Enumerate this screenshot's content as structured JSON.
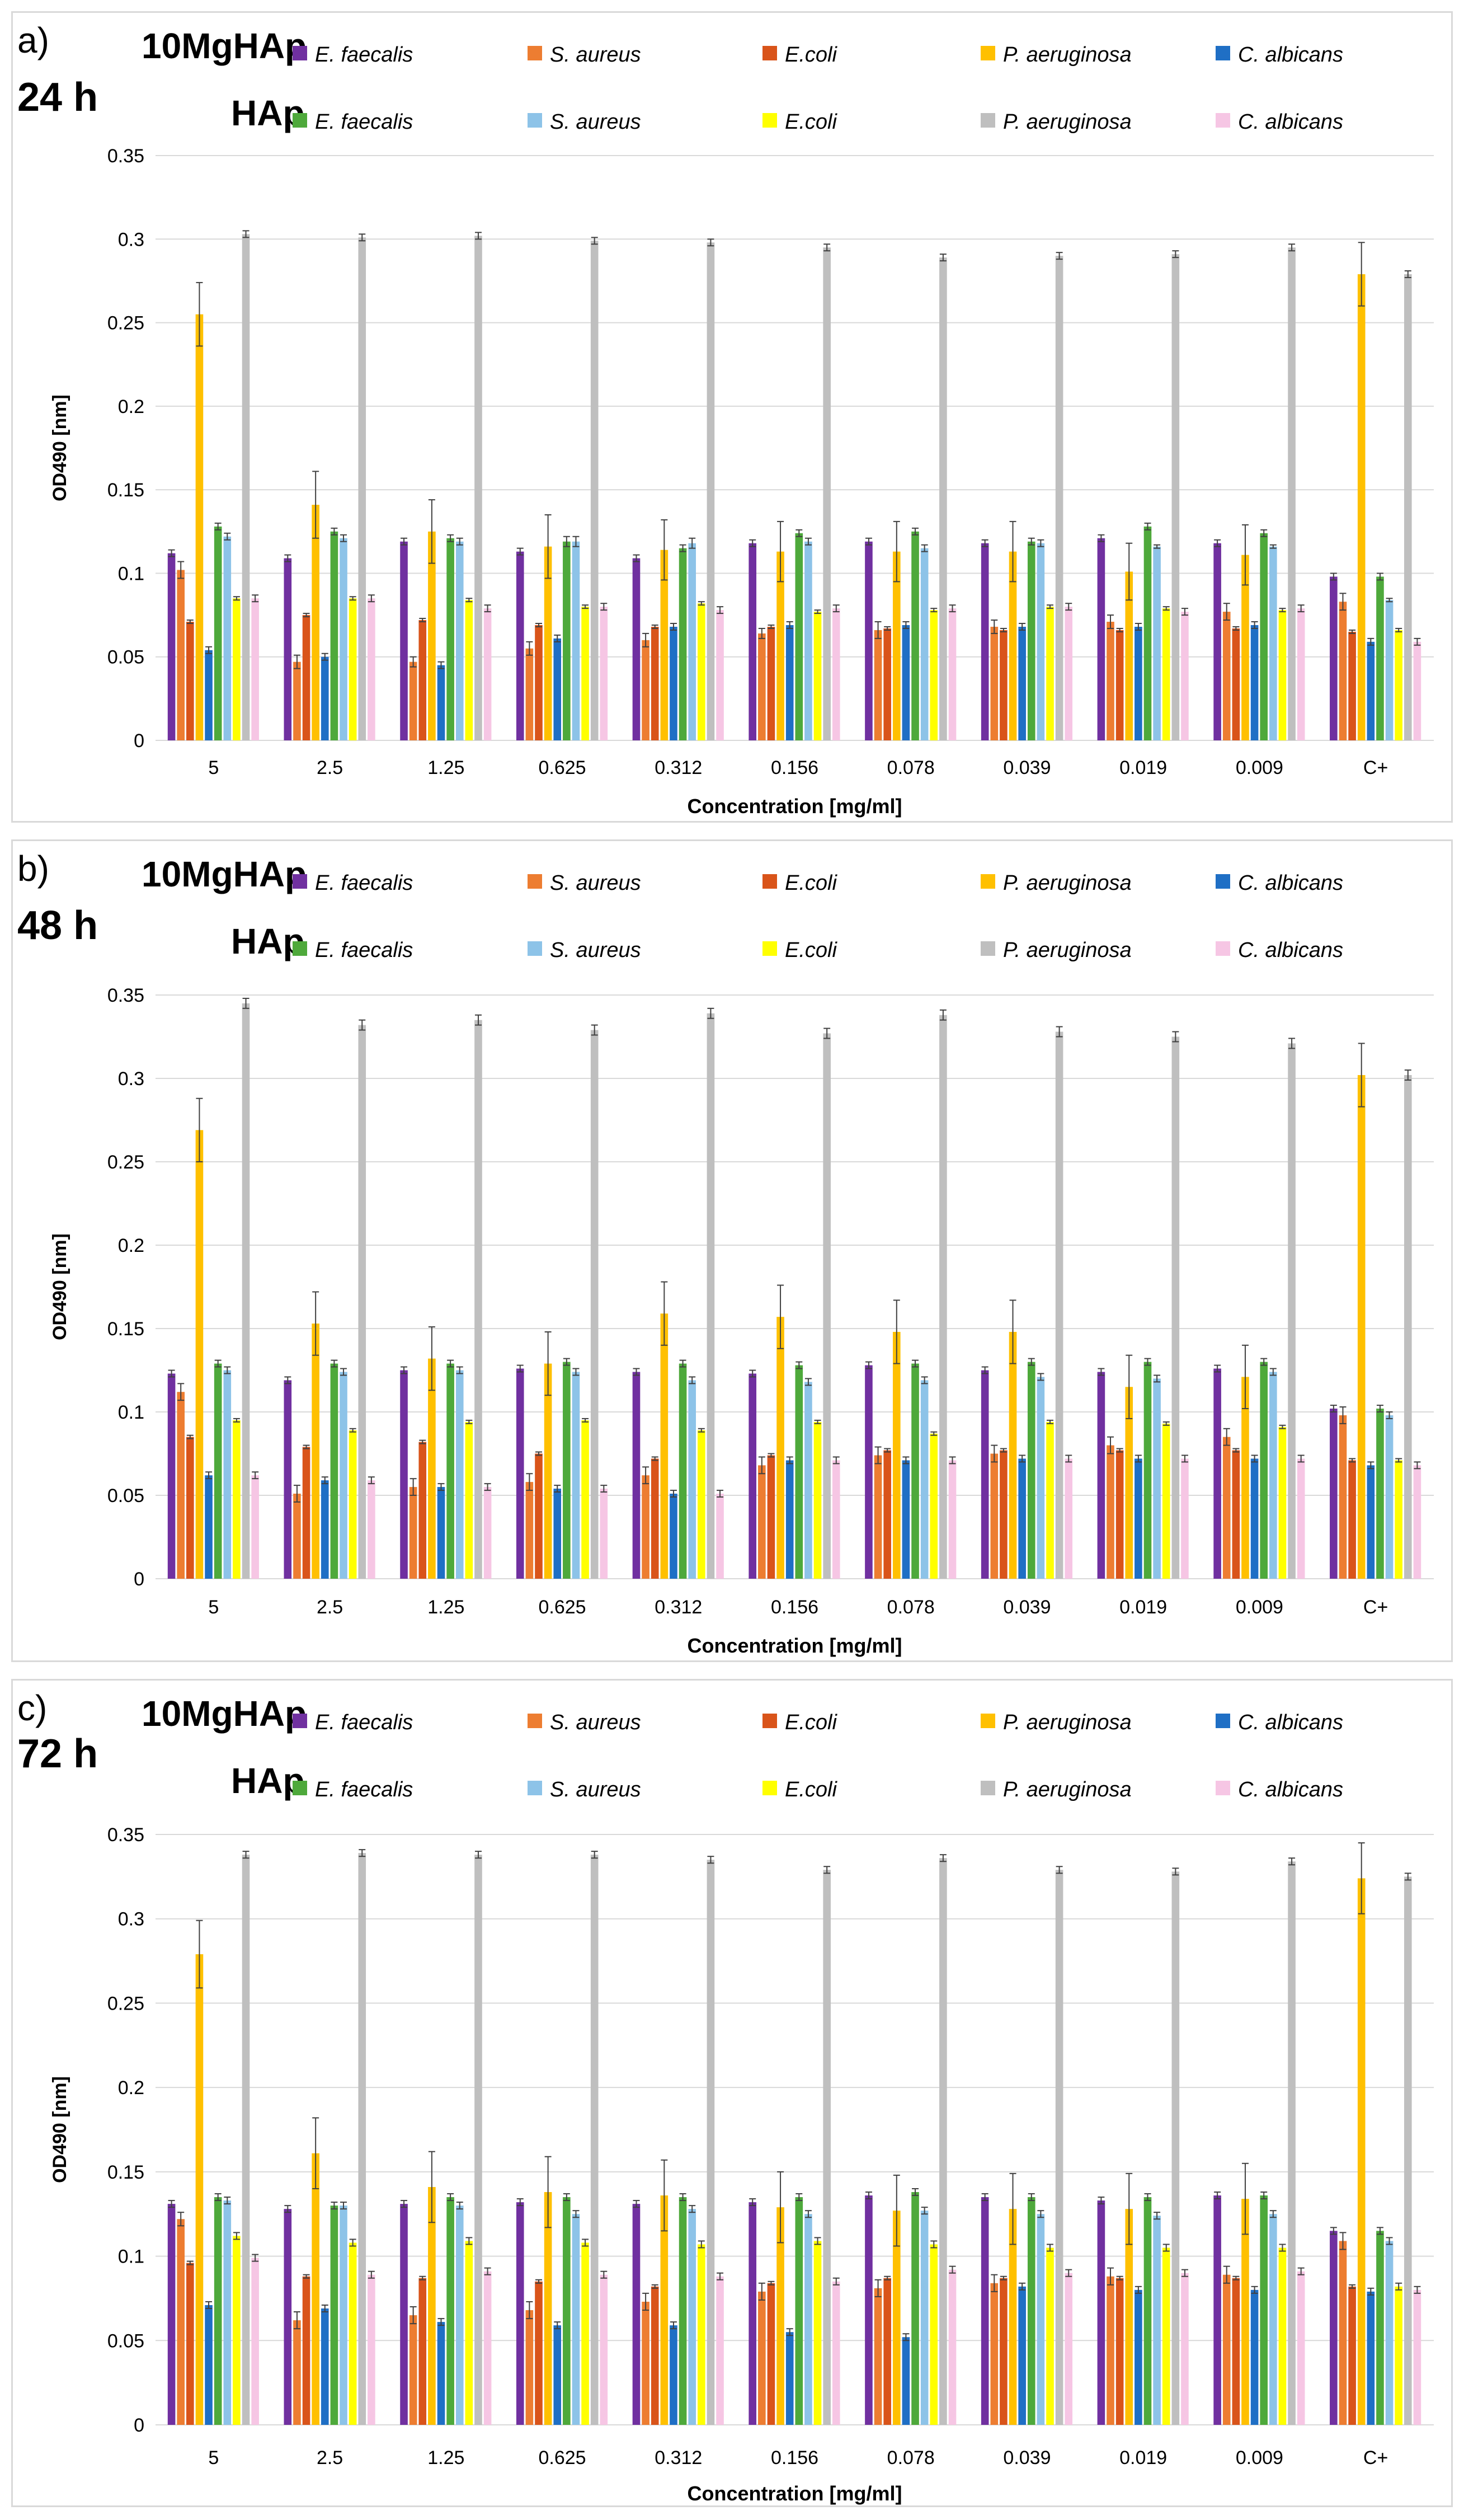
{
  "colors": {
    "mg_e_faecalis": "#7030A0",
    "mg_s_aureus": "#ED7D31",
    "mg_e_coli": "#D9541A",
    "mg_p_aeruginosa": "#FFC000",
    "mg_c_albicans": "#1F6FC5",
    "hap_e_faecalis": "#4EA93B",
    "hap_s_aureus": "#8DC3E8",
    "hap_e_coli": "#FFFF00",
    "hap_p_aeruginosa": "#BFBFBF",
    "hap_c_albicans": "#F6C6E4",
    "gridline": "#d9d9d9",
    "errorbar": "#404040"
  },
  "legend": {
    "mg_label": "10MgHAp",
    "hap_label": "HAp",
    "species": [
      "E. faecalis",
      "S. aureus",
      "E.coli",
      "P. aeruginosa",
      "C. albicans"
    ]
  },
  "chart_data": [
    {
      "type": "bar",
      "panel": "a)",
      "time": "24 h",
      "xlabel": "Concentration [mg/ml]",
      "ylabel": "OD490 [nm]",
      "ylim": [
        0,
        0.35
      ],
      "yticks": [
        "0",
        "0.05",
        "0.1",
        "0.15",
        "0.2",
        "0.25",
        "0.3",
        "0.35"
      ],
      "grid": true,
      "legend_position": "top",
      "categories": [
        "5",
        "2.5",
        "1.25",
        "0.625",
        "0.312",
        "0.156",
        "0.078",
        "0.039",
        "0.019",
        "0.009",
        "C+"
      ],
      "series": [
        {
          "group": "10MgHAp",
          "name": "E. faecalis",
          "values": [
            0.112,
            0.109,
            0.119,
            0.113,
            0.109,
            0.118,
            0.119,
            0.118,
            0.121,
            0.118,
            0.098
          ],
          "errors": [
            0.002,
            0.002,
            0.002,
            0.002,
            0.002,
            0.002,
            0.002,
            0.002,
            0.002,
            0.002,
            0.002
          ]
        },
        {
          "group": "10MgHAp",
          "name": "S. aureus",
          "values": [
            0.102,
            0.047,
            0.047,
            0.055,
            0.06,
            0.064,
            0.066,
            0.068,
            0.071,
            0.077,
            0.083
          ],
          "errors": [
            0.005,
            0.004,
            0.003,
            0.004,
            0.004,
            0.003,
            0.005,
            0.004,
            0.004,
            0.005,
            0.005
          ]
        },
        {
          "group": "10MgHAp",
          "name": "E.coli",
          "values": [
            0.071,
            0.075,
            0.072,
            0.069,
            0.068,
            0.068,
            0.067,
            0.066,
            0.066,
            0.067,
            0.065
          ],
          "errors": [
            0.001,
            0.001,
            0.001,
            0.001,
            0.001,
            0.001,
            0.001,
            0.001,
            0.001,
            0.001,
            0.001
          ]
        },
        {
          "group": "10MgHAp",
          "name": "P. aeruginosa",
          "values": [
            0.255,
            0.141,
            0.125,
            0.116,
            0.114,
            0.113,
            0.113,
            0.113,
            0.101,
            0.111,
            0.279
          ],
          "errors": [
            0.019,
            0.02,
            0.019,
            0.019,
            0.018,
            0.018,
            0.018,
            0.018,
            0.017,
            0.018,
            0.019
          ]
        },
        {
          "group": "10MgHAp",
          "name": "C. albicans",
          "values": [
            0.054,
            0.05,
            0.045,
            0.061,
            0.068,
            0.069,
            0.069,
            0.068,
            0.068,
            0.069,
            0.059
          ],
          "errors": [
            0.002,
            0.002,
            0.002,
            0.002,
            0.002,
            0.002,
            0.002,
            0.002,
            0.002,
            0.002,
            0.002
          ]
        },
        {
          "group": "HAp",
          "name": "E. faecalis",
          "values": [
            0.128,
            0.125,
            0.121,
            0.119,
            0.115,
            0.124,
            0.125,
            0.119,
            0.128,
            0.124,
            0.098
          ],
          "errors": [
            0.002,
            0.002,
            0.002,
            0.003,
            0.002,
            0.002,
            0.002,
            0.002,
            0.002,
            0.002,
            0.002
          ]
        },
        {
          "group": "HAp",
          "name": "S. aureus",
          "values": [
            0.122,
            0.121,
            0.119,
            0.119,
            0.118,
            0.119,
            0.115,
            0.118,
            0.116,
            0.116,
            0.084
          ],
          "errors": [
            0.002,
            0.002,
            0.002,
            0.003,
            0.003,
            0.002,
            0.002,
            0.002,
            0.001,
            0.001,
            0.001
          ]
        },
        {
          "group": "HAp",
          "name": "E.coli",
          "values": [
            0.085,
            0.085,
            0.084,
            0.08,
            0.082,
            0.077,
            0.078,
            0.08,
            0.079,
            0.078,
            0.066
          ],
          "errors": [
            0.001,
            0.001,
            0.001,
            0.001,
            0.001,
            0.001,
            0.001,
            0.001,
            0.001,
            0.001,
            0.001
          ]
        },
        {
          "group": "HAp",
          "name": "P. aeruginosa",
          "values": [
            0.303,
            0.301,
            0.302,
            0.299,
            0.298,
            0.295,
            0.289,
            0.29,
            0.291,
            0.295,
            0.279
          ],
          "errors": [
            0.002,
            0.002,
            0.002,
            0.002,
            0.002,
            0.002,
            0.002,
            0.002,
            0.002,
            0.002,
            0.002
          ]
        },
        {
          "group": "HAp",
          "name": "C. albicans",
          "values": [
            0.085,
            0.085,
            0.079,
            0.08,
            0.078,
            0.079,
            0.079,
            0.08,
            0.077,
            0.079,
            0.059
          ],
          "errors": [
            0.002,
            0.002,
            0.002,
            0.002,
            0.002,
            0.002,
            0.002,
            0.002,
            0.002,
            0.002,
            0.002
          ]
        }
      ]
    },
    {
      "type": "bar",
      "panel": "b)",
      "time": "48 h",
      "xlabel": "Concentration [mg/ml]",
      "ylabel": "OD490 [nm]",
      "ylim": [
        0,
        0.35
      ],
      "yticks": [
        "0",
        "0.05",
        "0.1",
        "0.15",
        "0.2",
        "0.25",
        "0.3",
        "0.35"
      ],
      "grid": true,
      "legend_position": "top",
      "categories": [
        "5",
        "2.5",
        "1.25",
        "0.625",
        "0.312",
        "0.156",
        "0.078",
        "0.039",
        "0.019",
        "0.009",
        "C+"
      ],
      "series": [
        {
          "group": "10MgHAp",
          "name": "E. faecalis",
          "values": [
            0.123,
            0.119,
            0.125,
            0.126,
            0.124,
            0.123,
            0.128,
            0.125,
            0.124,
            0.126,
            0.102
          ],
          "errors": [
            0.002,
            0.002,
            0.002,
            0.002,
            0.002,
            0.002,
            0.002,
            0.002,
            0.002,
            0.002,
            0.002
          ]
        },
        {
          "group": "10MgHAp",
          "name": "S. aureus",
          "values": [
            0.112,
            0.051,
            0.055,
            0.058,
            0.062,
            0.068,
            0.074,
            0.075,
            0.08,
            0.085,
            0.098
          ],
          "errors": [
            0.005,
            0.005,
            0.005,
            0.005,
            0.005,
            0.005,
            0.005,
            0.005,
            0.005,
            0.005,
            0.005
          ]
        },
        {
          "group": "10MgHAp",
          "name": "E.coli",
          "values": [
            0.085,
            0.079,
            0.082,
            0.075,
            0.072,
            0.074,
            0.077,
            0.077,
            0.077,
            0.077,
            0.071
          ],
          "errors": [
            0.001,
            0.001,
            0.001,
            0.001,
            0.001,
            0.001,
            0.001,
            0.001,
            0.001,
            0.001,
            0.001
          ]
        },
        {
          "group": "10MgHAp",
          "name": "P. aeruginosa",
          "values": [
            0.269,
            0.153,
            0.132,
            0.129,
            0.159,
            0.157,
            0.148,
            0.148,
            0.115,
            0.121,
            0.302
          ],
          "errors": [
            0.019,
            0.019,
            0.019,
            0.019,
            0.019,
            0.019,
            0.019,
            0.019,
            0.019,
            0.019,
            0.019
          ]
        },
        {
          "group": "10MgHAp",
          "name": "C. albicans",
          "values": [
            0.062,
            0.059,
            0.055,
            0.054,
            0.051,
            0.071,
            0.071,
            0.072,
            0.072,
            0.072,
            0.068
          ],
          "errors": [
            0.002,
            0.002,
            0.002,
            0.002,
            0.002,
            0.002,
            0.002,
            0.002,
            0.002,
            0.002,
            0.002
          ]
        },
        {
          "group": "HAp",
          "name": "E. faecalis",
          "values": [
            0.129,
            0.129,
            0.129,
            0.13,
            0.129,
            0.128,
            0.129,
            0.13,
            0.13,
            0.13,
            0.102
          ],
          "errors": [
            0.002,
            0.002,
            0.002,
            0.002,
            0.002,
            0.002,
            0.002,
            0.002,
            0.002,
            0.002,
            0.002
          ]
        },
        {
          "group": "HAp",
          "name": "S. aureus",
          "values": [
            0.125,
            0.124,
            0.125,
            0.124,
            0.119,
            0.118,
            0.119,
            0.121,
            0.12,
            0.124,
            0.098
          ],
          "errors": [
            0.002,
            0.002,
            0.002,
            0.002,
            0.002,
            0.002,
            0.002,
            0.002,
            0.002,
            0.002,
            0.002
          ]
        },
        {
          "group": "HAp",
          "name": "E.coli",
          "values": [
            0.095,
            0.089,
            0.094,
            0.095,
            0.089,
            0.094,
            0.087,
            0.094,
            0.093,
            0.091,
            0.071
          ],
          "errors": [
            0.001,
            0.001,
            0.001,
            0.001,
            0.001,
            0.001,
            0.001,
            0.001,
            0.001,
            0.001,
            0.001
          ]
        },
        {
          "group": "HAp",
          "name": "P. aeruginosa",
          "values": [
            0.345,
            0.332,
            0.335,
            0.329,
            0.339,
            0.327,
            0.338,
            0.328,
            0.325,
            0.321,
            0.302
          ],
          "errors": [
            0.003,
            0.003,
            0.003,
            0.003,
            0.003,
            0.003,
            0.003,
            0.003,
            0.003,
            0.003,
            0.003
          ]
        },
        {
          "group": "HAp",
          "name": "C. albicans",
          "values": [
            0.062,
            0.059,
            0.055,
            0.054,
            0.051,
            0.071,
            0.071,
            0.072,
            0.072,
            0.072,
            0.068
          ],
          "errors": [
            0.002,
            0.002,
            0.002,
            0.002,
            0.002,
            0.002,
            0.002,
            0.002,
            0.002,
            0.002,
            0.002
          ]
        }
      ]
    },
    {
      "type": "bar",
      "panel": "c)",
      "time": "72 h",
      "xlabel": "Concentration [mg/ml]",
      "ylabel": "OD490 [nm]",
      "ylim": [
        0,
        0.35
      ],
      "yticks": [
        "0",
        "0.05",
        "0.1",
        "0.15",
        "0.2",
        "0.25",
        "0.3",
        "0.35"
      ],
      "grid": true,
      "legend_position": "top",
      "categories": [
        "5",
        "2.5",
        "1.25",
        "0.625",
        "0.312",
        "0.156",
        "0.078",
        "0.039",
        "0.019",
        "0.009",
        "C+"
      ],
      "series": [
        {
          "group": "10MgHAp",
          "name": "E. faecalis",
          "values": [
            0.131,
            0.128,
            0.131,
            0.132,
            0.131,
            0.132,
            0.136,
            0.135,
            0.133,
            0.136,
            0.115
          ],
          "errors": [
            0.002,
            0.002,
            0.002,
            0.002,
            0.002,
            0.002,
            0.002,
            0.002,
            0.002,
            0.002,
            0.002
          ]
        },
        {
          "group": "10MgHAp",
          "name": "S. aureus",
          "values": [
            0.122,
            0.062,
            0.065,
            0.068,
            0.073,
            0.079,
            0.081,
            0.084,
            0.088,
            0.089,
            0.109
          ],
          "errors": [
            0.004,
            0.005,
            0.005,
            0.005,
            0.005,
            0.005,
            0.005,
            0.005,
            0.005,
            0.005,
            0.005
          ]
        },
        {
          "group": "10MgHAp",
          "name": "E.coli",
          "values": [
            0.096,
            0.088,
            0.087,
            0.085,
            0.082,
            0.084,
            0.087,
            0.087,
            0.087,
            0.087,
            0.082
          ],
          "errors": [
            0.001,
            0.001,
            0.001,
            0.001,
            0.001,
            0.001,
            0.001,
            0.001,
            0.001,
            0.001,
            0.001
          ]
        },
        {
          "group": "10MgHAp",
          "name": "P. aeruginosa",
          "values": [
            0.279,
            0.161,
            0.141,
            0.138,
            0.136,
            0.129,
            0.127,
            0.128,
            0.128,
            0.134,
            0.324
          ],
          "errors": [
            0.02,
            0.021,
            0.021,
            0.021,
            0.021,
            0.021,
            0.021,
            0.021,
            0.021,
            0.021,
            0.021
          ]
        },
        {
          "group": "10MgHAp",
          "name": "C. albicans",
          "values": [
            0.071,
            0.069,
            0.061,
            0.059,
            0.059,
            0.055,
            0.052,
            0.082,
            0.08,
            0.08,
            0.079
          ],
          "errors": [
            0.002,
            0.002,
            0.002,
            0.002,
            0.002,
            0.002,
            0.002,
            0.002,
            0.002,
            0.002,
            0.002
          ]
        },
        {
          "group": "HAp",
          "name": "E. faecalis",
          "values": [
            0.135,
            0.13,
            0.135,
            0.135,
            0.135,
            0.135,
            0.138,
            0.135,
            0.135,
            0.136,
            0.115
          ],
          "errors": [
            0.002,
            0.002,
            0.002,
            0.002,
            0.002,
            0.002,
            0.002,
            0.002,
            0.002,
            0.002,
            0.002
          ]
        },
        {
          "group": "HAp",
          "name": "S. aureus",
          "values": [
            0.133,
            0.13,
            0.13,
            0.125,
            0.128,
            0.125,
            0.127,
            0.125,
            0.124,
            0.125,
            0.109
          ],
          "errors": [
            0.002,
            0.002,
            0.002,
            0.002,
            0.002,
            0.002,
            0.002,
            0.002,
            0.002,
            0.002,
            0.002
          ]
        },
        {
          "group": "HAp",
          "name": "E.coli",
          "values": [
            0.112,
            0.108,
            0.109,
            0.108,
            0.107,
            0.109,
            0.107,
            0.105,
            0.105,
            0.105,
            0.082
          ],
          "errors": [
            0.002,
            0.002,
            0.002,
            0.002,
            0.002,
            0.002,
            0.002,
            0.002,
            0.002,
            0.002,
            0.002
          ]
        },
        {
          "group": "HAp",
          "name": "P. aeruginosa",
          "values": [
            0.338,
            0.339,
            0.338,
            0.338,
            0.335,
            0.329,
            0.336,
            0.329,
            0.328,
            0.334,
            0.325
          ],
          "errors": [
            0.002,
            0.002,
            0.002,
            0.002,
            0.002,
            0.002,
            0.002,
            0.002,
            0.002,
            0.002,
            0.002
          ]
        },
        {
          "group": "HAp",
          "name": "C. albicans",
          "values": [
            0.099,
            0.089,
            0.091,
            0.089,
            0.088,
            0.085,
            0.092,
            0.09,
            0.09,
            0.091,
            0.08
          ],
          "errors": [
            0.002,
            0.002,
            0.002,
            0.002,
            0.002,
            0.002,
            0.002,
            0.002,
            0.002,
            0.002,
            0.002
          ]
        }
      ]
    }
  ]
}
